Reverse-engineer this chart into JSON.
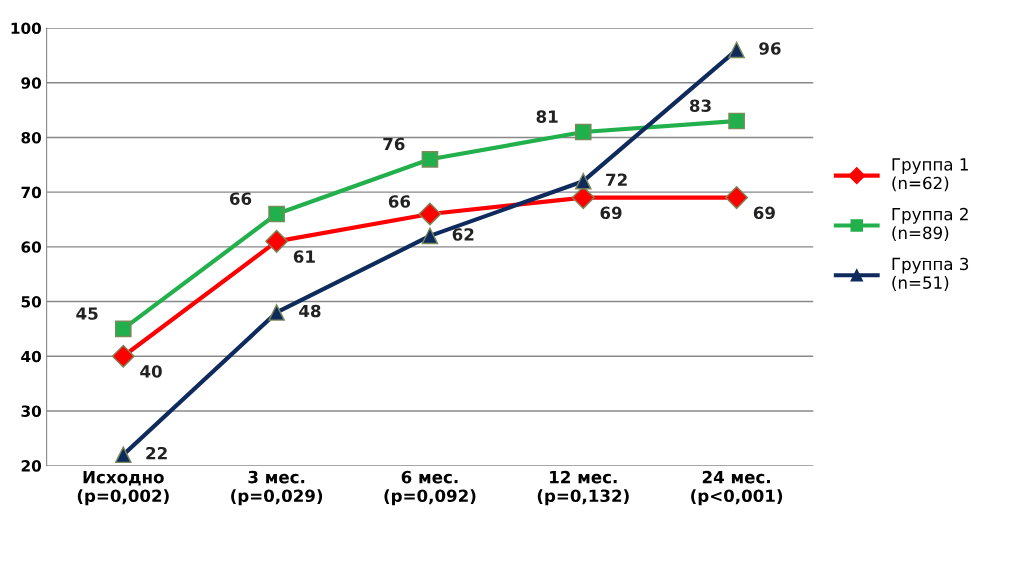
{
  "chart_data": {
    "type": "line",
    "categories": [
      "Исходно\n(p=0,002)",
      "3 мес.\n(p=0,029)",
      "6 мес.\n(p=0,092)",
      "12 мес.\n(p=0,132)",
      "24 мес.\n(p<0,001)"
    ],
    "series": [
      {
        "name": "Группа 1\n(n=62)",
        "color": "#ff0000",
        "marker": "diamond",
        "values": [
          40,
          61,
          66,
          69,
          69
        ]
      },
      {
        "name": "Группа 2\n(n=89)",
        "color": "#22b04c",
        "marker": "square",
        "values": [
          45,
          66,
          76,
          81,
          83
        ]
      },
      {
        "name": "Группа 3\n(n=51)",
        "color": "#0f2a5c",
        "marker": "triangle",
        "values": [
          22,
          48,
          62,
          72,
          96
        ]
      }
    ],
    "ylim": [
      20,
      100
    ],
    "yticks": [
      20,
      30,
      40,
      50,
      60,
      70,
      80,
      90,
      100
    ],
    "grid": "y",
    "legend": "right",
    "data_labels": true
  }
}
